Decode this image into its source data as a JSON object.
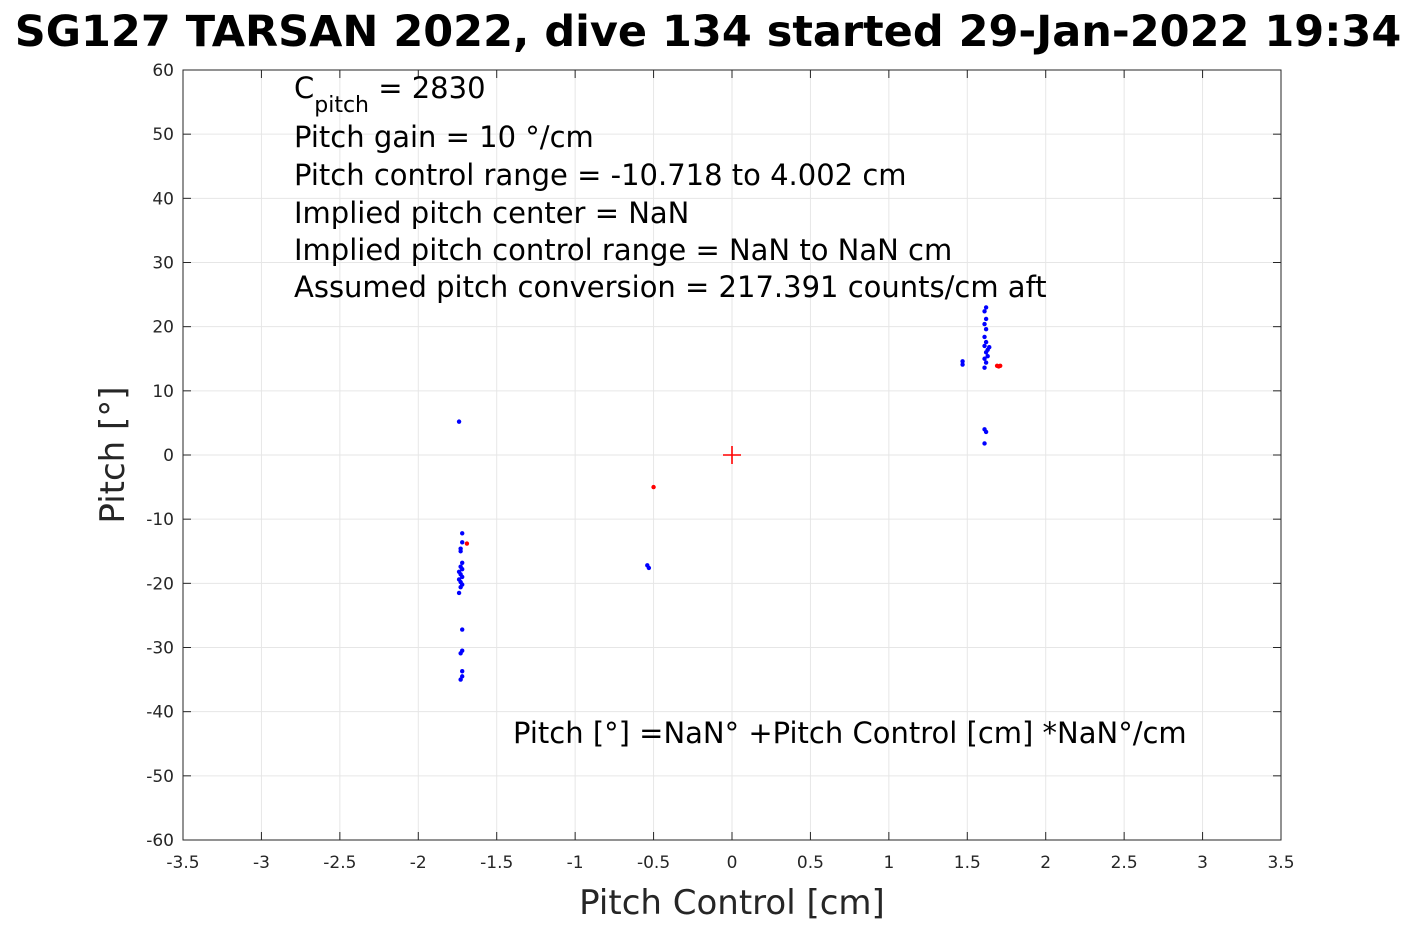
{
  "chart_data": {
    "type": "scatter",
    "title": "SG127 TARSAN 2022, dive 134 started 29-Jan-2022 19:34",
    "xlabel": "Pitch Control [cm]",
    "ylabel": "Pitch [°]",
    "xlim": [
      -3.5,
      3.5
    ],
    "ylim": [
      -60,
      60
    ],
    "xticks": [
      -3.5,
      -3,
      -2.5,
      -2,
      -1.5,
      -1,
      -0.5,
      0,
      0.5,
      1,
      1.5,
      2,
      2.5,
      3,
      3.5
    ],
    "xtick_labels": [
      "-3.5",
      "-3",
      "-2.5",
      "-2",
      "-1.5",
      "-1",
      "-0.5",
      "0",
      "0.5",
      "1",
      "1.5",
      "2",
      "2.5",
      "3",
      "3.5"
    ],
    "yticks": [
      -60,
      -50,
      -40,
      -30,
      -20,
      -10,
      0,
      10,
      20,
      30,
      40,
      50,
      60
    ],
    "ytick_labels": [
      "-60",
      "-50",
      "-40",
      "-30",
      "-20",
      "-10",
      "0",
      "10",
      "20",
      "30",
      "40",
      "50",
      "60"
    ],
    "grid": true,
    "colors": {
      "blue_points": "#0000ff",
      "red_points": "#ff0000",
      "grid": "#e6e6e6",
      "axes": "#262626"
    },
    "series": [
      {
        "color": "#0000ff",
        "points": [
          [
            -1.74,
            5.2
          ],
          [
            -1.72,
            -12.2
          ],
          [
            -1.72,
            -13.6
          ],
          [
            -1.73,
            -14.6
          ],
          [
            -1.73,
            -15.0
          ],
          [
            -1.72,
            -16.8
          ],
          [
            -1.73,
            -17.4
          ],
          [
            -1.72,
            -17.8
          ],
          [
            -1.74,
            -18.2
          ],
          [
            -1.73,
            -18.6
          ],
          [
            -1.72,
            -19.0
          ],
          [
            -1.74,
            -19.4
          ],
          [
            -1.73,
            -19.8
          ],
          [
            -1.72,
            -20.2
          ],
          [
            -1.73,
            -20.6
          ],
          [
            -1.74,
            -21.5
          ],
          [
            -1.72,
            -27.2
          ],
          [
            -1.72,
            -30.5
          ],
          [
            -1.73,
            -30.9
          ],
          [
            -1.72,
            -33.7
          ],
          [
            -1.72,
            -34.5
          ],
          [
            -1.73,
            -35.0
          ],
          [
            -0.54,
            -17.2
          ],
          [
            -0.53,
            -17.6
          ],
          [
            1.47,
            14.1
          ],
          [
            1.47,
            14.6
          ],
          [
            1.62,
            23.0
          ],
          [
            1.61,
            22.4
          ],
          [
            1.62,
            21.2
          ],
          [
            1.61,
            20.4
          ],
          [
            1.62,
            19.6
          ],
          [
            1.61,
            18.4
          ],
          [
            1.62,
            17.6
          ],
          [
            1.61,
            17.0
          ],
          [
            1.63,
            16.4
          ],
          [
            1.62,
            16.0
          ],
          [
            1.64,
            16.8
          ],
          [
            1.63,
            15.4
          ],
          [
            1.61,
            15.0
          ],
          [
            1.62,
            14.4
          ],
          [
            1.61,
            13.6
          ],
          [
            1.62,
            3.6
          ],
          [
            1.61,
            4.0
          ],
          [
            1.61,
            1.8
          ]
        ]
      },
      {
        "color": "#ff0000",
        "points": [
          [
            -1.69,
            -13.8
          ],
          [
            -0.5,
            -5.0
          ],
          [
            1.69,
            13.9
          ],
          [
            1.7,
            13.8
          ],
          [
            1.71,
            13.9
          ]
        ]
      }
    ],
    "center_marker": {
      "x": 0,
      "y": 0,
      "color": "#ff0000",
      "shape": "plus"
    },
    "annotations": {
      "c_pitch_main": "C",
      "c_pitch_sub": "pitch",
      "c_pitch_rest": " = 2830",
      "line2": "Pitch gain = 10 °/cm",
      "line3": "Pitch control range = -10.718 to 4.002 cm",
      "line4": "Implied pitch center = NaN",
      "line5": "Implied pitch control range = NaN to NaN cm",
      "line6": "Assumed pitch conversion = 217.391 counts/cm aft",
      "fit_equation": "Pitch [°] =NaN° +Pitch Control [cm] *NaN°/cm"
    }
  }
}
